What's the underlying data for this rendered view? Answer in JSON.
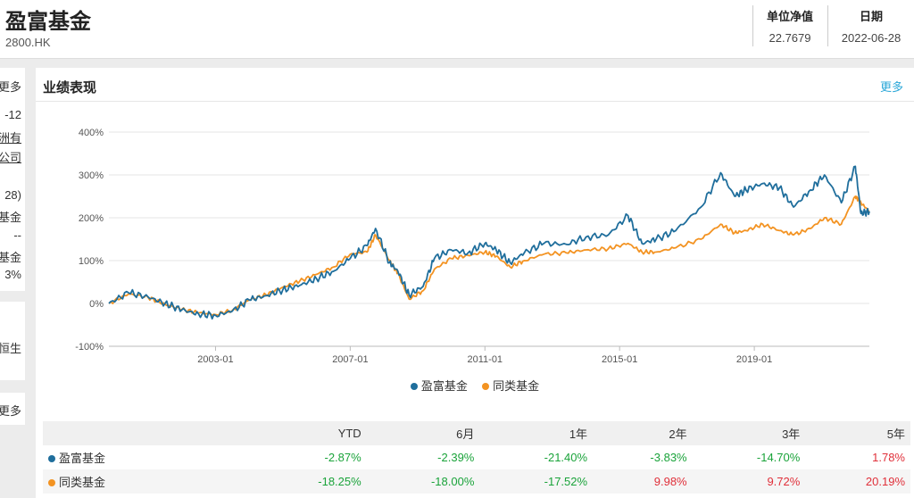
{
  "header": {
    "fund_name": "盈富基金",
    "fund_code": "2800.HK",
    "nav_label": "单位净值",
    "nav_value": "22.7679",
    "date_label": "日期",
    "date_value": "2022-06-28"
  },
  "sidebar": {
    "card1": {
      "more": "更多",
      "lines": [
        "-12",
        "洲有",
        "公司",
        "",
        "28)",
        "基金",
        "--",
        "基金",
        "3%"
      ]
    },
    "card2": {
      "lines": [
        "恒生"
      ]
    },
    "card3": {
      "more": "更多"
    }
  },
  "performance": {
    "title": "业绩表现",
    "more": "更多",
    "columns": [
      "",
      "YTD",
      "6月",
      "1年",
      "2年",
      "3年",
      "5年"
    ],
    "rows": [
      {
        "name": "盈富基金",
        "color": "#1f6e9c",
        "values": [
          "-2.87%",
          "-2.39%",
          "-21.40%",
          "-3.83%",
          "-14.70%",
          "1.78%"
        ]
      },
      {
        "name": "同类基金",
        "color": "#f39322",
        "values": [
          "-18.25%",
          "-18.00%",
          "-17.52%",
          "9.98%",
          "9.72%",
          "20.19%"
        ]
      }
    ]
  },
  "chart_data": {
    "type": "line",
    "title": "",
    "xlabel": "",
    "ylabel": "",
    "ylim": [
      -100,
      400
    ],
    "yticks": [
      "400%",
      "300%",
      "200%",
      "100%",
      "0%",
      "-100%"
    ],
    "xticks": [
      "2003-01",
      "2007-01",
      "2011-01",
      "2015-01",
      "2019-01"
    ],
    "grid": true,
    "legend": "bottom-center",
    "x": [
      "1999-11",
      "2000-06",
      "2001-01",
      "2001-07",
      "2002-01",
      "2002-07",
      "2003-01",
      "2003-07",
      "2004-01",
      "2004-07",
      "2005-01",
      "2005-07",
      "2006-01",
      "2006-07",
      "2007-01",
      "2007-07",
      "2007-10",
      "2008-03",
      "2008-06",
      "2008-10",
      "2009-03",
      "2009-07",
      "2010-01",
      "2010-07",
      "2011-01",
      "2011-05",
      "2011-10",
      "2012-03",
      "2012-10",
      "2013-06",
      "2014-01",
      "2014-09",
      "2015-04",
      "2015-09",
      "2016-02",
      "2016-09",
      "2017-06",
      "2018-01",
      "2018-06",
      "2018-10",
      "2019-04",
      "2019-10",
      "2020-03",
      "2020-09",
      "2021-02",
      "2021-08",
      "2022-01",
      "2022-03",
      "2022-06"
    ],
    "series": [
      {
        "name": "盈富基金",
        "color": "#1f6e9c",
        "values": [
          0,
          25,
          15,
          0,
          -15,
          -25,
          -28,
          -18,
          8,
          18,
          32,
          42,
          58,
          75,
          105,
          135,
          175,
          95,
          75,
          20,
          40,
          105,
          125,
          118,
          140,
          125,
          95,
          118,
          140,
          138,
          155,
          160,
          205,
          140,
          150,
          170,
          225,
          305,
          250,
          265,
          280,
          270,
          225,
          265,
          300,
          235,
          320,
          210,
          215
        ]
      },
      {
        "name": "同类基金",
        "color": "#f39322",
        "values": [
          0,
          22,
          14,
          -2,
          -14,
          -22,
          -26,
          -16,
          8,
          20,
          38,
          52,
          68,
          85,
          115,
          120,
          160,
          100,
          70,
          10,
          30,
          80,
          105,
          112,
          120,
          110,
          85,
          100,
          115,
          118,
          125,
          128,
          140,
          120,
          120,
          130,
          150,
          185,
          165,
          170,
          185,
          170,
          160,
          175,
          200,
          185,
          250,
          235,
          215
        ]
      }
    ]
  }
}
